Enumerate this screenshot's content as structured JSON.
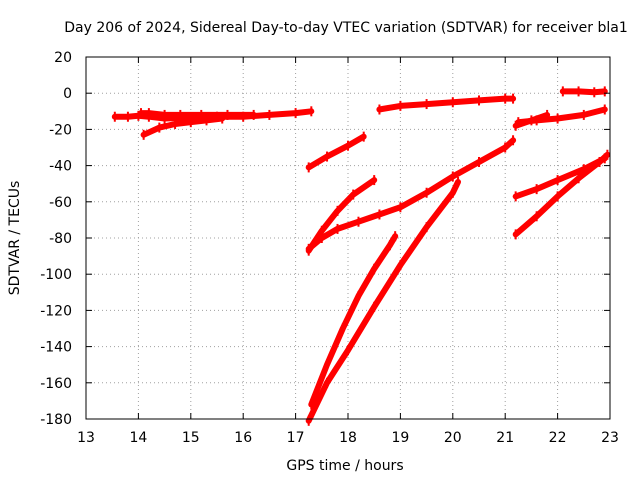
{
  "chart_data": {
    "type": "line",
    "title": "Day 206 of 2024, Sidereal Day-to-day VTEC variation (SDTVAR) for receiver bla1",
    "xlabel": "GPS time / hours",
    "ylabel": "SDTVAR / TECUs",
    "xlim": [
      13,
      23
    ],
    "ylim": [
      -180,
      20
    ],
    "xticks": [
      13,
      14,
      15,
      16,
      17,
      18,
      19,
      20,
      21,
      22,
      23
    ],
    "yticks": [
      20,
      0,
      -20,
      -40,
      -60,
      -80,
      -100,
      -120,
      -140,
      -160,
      -180
    ],
    "grid": true,
    "series_color": "#ff0000",
    "series": [
      {
        "x": [
          13.55,
          13.8,
          14.0,
          14.2,
          14.5,
          15.0,
          15.5,
          16.0,
          16.5,
          17.0,
          17.3
        ],
        "y": [
          -13,
          -13,
          -12.5,
          -13,
          -14,
          -13.5,
          -13,
          -13,
          -12,
          -11,
          -10
        ]
      },
      {
        "x": [
          14.05,
          14.2,
          14.5,
          14.8,
          15.2,
          15.7,
          16.2
        ],
        "y": [
          -11,
          -11,
          -12,
          -12,
          -12,
          -12,
          -12
        ]
      },
      {
        "x": [
          14.1,
          14.4,
          14.7,
          15.0,
          15.3,
          15.6
        ],
        "y": [
          -23,
          -19,
          -17,
          -16,
          -15,
          -14
        ]
      },
      {
        "x": [
          17.25,
          17.6,
          18.0,
          18.3
        ],
        "y": [
          -41,
          -35,
          -29,
          -24
        ]
      },
      {
        "x": [
          18.6,
          19.0,
          19.5,
          20.0,
          20.5,
          21.0,
          21.15
        ],
        "y": [
          -9,
          -7,
          -6,
          -5,
          -4,
          -3,
          -3
        ]
      },
      {
        "x": [
          17.25,
          17.5,
          17.8,
          18.1,
          18.5
        ],
        "y": [
          -87,
          -76,
          -65,
          -56,
          -48
        ]
      },
      {
        "x": [
          17.25,
          17.5,
          17.8,
          18.2,
          18.6,
          19.0,
          19.5,
          20.0,
          20.5,
          21.0,
          21.15
        ],
        "y": [
          -86,
          -80,
          -75,
          -71,
          -67,
          -63,
          -55,
          -46,
          -38,
          -30,
          -26
        ]
      },
      {
        "x": [
          17.3,
          17.6,
          17.9,
          18.2,
          18.5,
          18.8,
          18.9
        ],
        "y": [
          -172,
          -150,
          -130,
          -112,
          -97,
          -84,
          -79
        ]
      },
      {
        "x": [
          17.25,
          17.6,
          18.0,
          18.5,
          19.0,
          19.5,
          20.0,
          20.1
        ],
        "y": [
          -181,
          -160,
          -142,
          -118,
          -95,
          -74,
          -55,
          -49
        ]
      },
      {
        "x": [
          21.2,
          21.5,
          21.8
        ],
        "y": [
          -18,
          -15,
          -12
        ]
      },
      {
        "x": [
          21.25,
          21.6,
          22.0,
          22.5,
          22.9
        ],
        "y": [
          -16,
          -15,
          -14,
          -12,
          -9
        ]
      },
      {
        "x": [
          22.1,
          22.4,
          22.7,
          22.9
        ],
        "y": [
          1,
          1,
          0.5,
          1
        ]
      },
      {
        "x": [
          21.2,
          21.6,
          22.0,
          22.5,
          22.9
        ],
        "y": [
          -57,
          -53,
          -48,
          -42,
          -36
        ]
      },
      {
        "x": [
          21.2,
          21.6,
          22.0,
          22.4,
          22.8,
          22.95
        ],
        "y": [
          -78,
          -68,
          -57,
          -47,
          -38,
          -34
        ]
      }
    ]
  }
}
